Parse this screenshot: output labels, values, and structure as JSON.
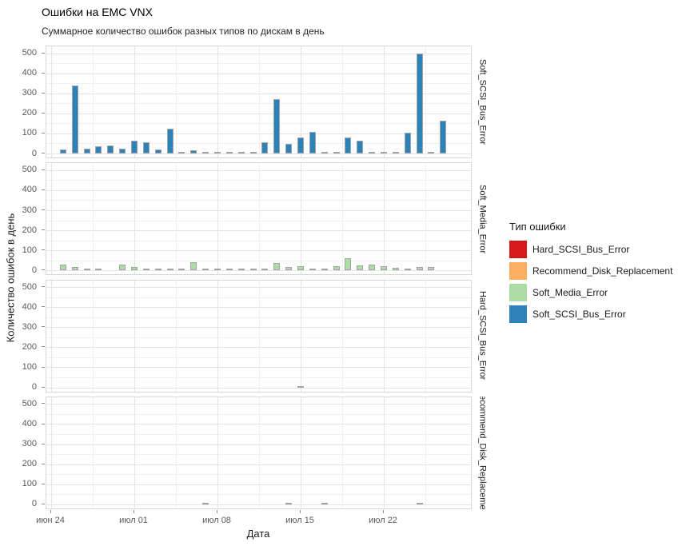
{
  "title": "Ошибки на EMC VNX",
  "subtitle": "Суммарное количество ошибок разных типов по дискам в день",
  "legend": {
    "title": "Тип ошибки",
    "items": [
      {
        "label": "Hard_SCSI_Bus_Error",
        "color": "#d7191c"
      },
      {
        "label": "Recommend_Disk_Replacement",
        "color": "#fdae61"
      },
      {
        "label": "Soft_Media_Error",
        "color": "#abdda4"
      },
      {
        "label": "Soft_SCSI_Bus_Error",
        "color": "#2b83ba"
      }
    ]
  },
  "chart_data": {
    "type": "bar",
    "title": "Ошибки на EMC VNX",
    "subtitle": "Суммарное количество ошибок разных типов по дискам в день",
    "xlabel": "Дата",
    "ylabel": "Количество ошибок в день",
    "ylim": [
      0,
      500
    ],
    "y_ticks": [
      0,
      100,
      200,
      300,
      400,
      500
    ],
    "grid": true,
    "legend_position": "right",
    "facet_layout": "rows",
    "x_ticks": [
      {
        "label": "июн 24",
        "day": 0
      },
      {
        "label": "июл 01",
        "day": 7
      },
      {
        "label": "июл 08",
        "day": 14
      },
      {
        "label": "июл 15",
        "day": 21
      },
      {
        "label": "июл 22",
        "day": 28
      }
    ],
    "x_minor_ticks_days": [
      3.5,
      10.5,
      17.5,
      24.5,
      31.5
    ],
    "dates": [
      "июн 25",
      "июн 26",
      "июн 27",
      "июн 28",
      "июн 29",
      "июн 30",
      "июл 01",
      "июл 02",
      "июл 03",
      "июл 04",
      "июл 05",
      "июл 06",
      "июл 07",
      "июл 08",
      "июл 09",
      "июл 10",
      "июл 11",
      "июл 12",
      "июл 13",
      "июл 14",
      "июл 15",
      "июл 16",
      "июл 17",
      "июл 18",
      "июл 19",
      "июл 20",
      "июл 21",
      "июл 22",
      "июл 23",
      "июл 24",
      "июл 25",
      "июл 26",
      "июл 27"
    ],
    "facets": [
      {
        "name": "Soft_SCSI_Bus_Error",
        "color": "#2b83ba",
        "values": [
          20,
          340,
          25,
          38,
          40,
          25,
          65,
          55,
          20,
          125,
          3,
          15,
          2,
          2,
          3,
          3,
          10,
          55,
          270,
          50,
          80,
          107,
          3,
          10,
          78,
          64,
          3,
          2,
          3,
          105,
          500,
          10,
          165
        ]
      },
      {
        "name": "Soft_Media_Error",
        "color": "#abdda4",
        "values": [
          30,
          18,
          8,
          5,
          0,
          28,
          15,
          7,
          10,
          10,
          7,
          42,
          10,
          3,
          10,
          10,
          6,
          3,
          35,
          15,
          20,
          10,
          3,
          22,
          60,
          25,
          27,
          20,
          13,
          4,
          15,
          18,
          0
        ]
      },
      {
        "name": "Hard_SCSI_Bus_Error",
        "color": "#d7191c",
        "values": [
          0,
          0,
          0,
          0,
          0,
          0,
          0,
          0,
          0,
          0,
          0,
          0,
          0,
          0,
          0,
          0,
          0,
          0,
          0,
          0,
          3,
          0,
          0,
          0,
          0,
          0,
          0,
          0,
          0,
          0,
          0,
          0,
          0
        ]
      },
      {
        "name": "Recommend_Disk_Replacement",
        "color": "#fdae61",
        "values": [
          0,
          0,
          0,
          0,
          0,
          0,
          0,
          0,
          0,
          0,
          0,
          0,
          4,
          0,
          0,
          0,
          0,
          0,
          0,
          4,
          0,
          0,
          4,
          0,
          0,
          0,
          0,
          0,
          0,
          0,
          4,
          0,
          0
        ]
      }
    ]
  }
}
